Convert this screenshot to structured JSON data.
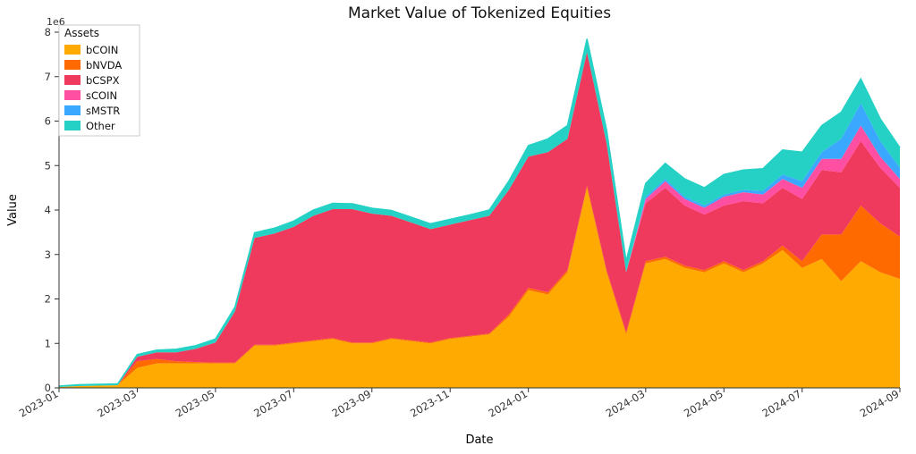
{
  "chart": {
    "type": "stacked-area",
    "title": "Market Value of Tokenized Equities",
    "title_fontsize": 17,
    "xlabel": "Date",
    "ylabel": "Value",
    "label_fontsize": 13,
    "legend_title": "Assets",
    "background_color": "#ffffff",
    "plot_background": "#ffffff",
    "outline_color": "#24d1c4",
    "outline_width": 1.5,
    "x_axis": {
      "type": "time",
      "ticks_months": [
        "2023-01",
        "2023-03",
        "2023-05",
        "2023-07",
        "2023-09",
        "2023-11",
        "2024-01",
        "2024-03",
        "2024-05",
        "2024-07",
        "2024-09"
      ],
      "tick_rotation_deg": 30,
      "range_start": "2023-01",
      "range_end": "2024-09"
    },
    "y_axis": {
      "exponent_label": "1e6",
      "ylim": [
        0,
        8
      ],
      "ytick_step": 1,
      "ticks": [
        0,
        1,
        2,
        3,
        4,
        5,
        6,
        7,
        8
      ]
    },
    "series": [
      {
        "name": "bCOIN",
        "color": "#ffaa00"
      },
      {
        "name": "bNVDA",
        "color": "#ff6a00"
      },
      {
        "name": "bCSPX",
        "color": "#ef3a5d"
      },
      {
        "name": "sCOIN",
        "color": "#ff4fa3"
      },
      {
        "name": "sMSTR",
        "color": "#3aa8ff"
      },
      {
        "name": "Other",
        "color": "#24d1c4"
      }
    ],
    "months": [
      "2023-01",
      "2023-01b",
      "2023-02",
      "2023-02b",
      "2023-03",
      "2023-03b",
      "2023-04",
      "2023-04b",
      "2023-05",
      "2023-05b",
      "2023-06",
      "2023-06b",
      "2023-07",
      "2023-07b",
      "2023-08",
      "2023-08b",
      "2023-09",
      "2023-09b",
      "2023-10",
      "2023-10b",
      "2023-11",
      "2023-11b",
      "2023-12",
      "2023-12b",
      "2024-01",
      "2024-01b",
      "2024-02",
      "2024-02b",
      "2024-02c",
      "2024-02d",
      "2024-03",
      "2024-03b",
      "2024-04",
      "2024-04b",
      "2024-05",
      "2024-05b",
      "2024-06",
      "2024-06b",
      "2024-07",
      "2024-07b",
      "2024-07c",
      "2024-08",
      "2024-08b",
      "2024-08c"
    ],
    "values": {
      "bCOIN": [
        0.02,
        0.04,
        0.05,
        0.06,
        0.45,
        0.55,
        0.55,
        0.55,
        0.55,
        0.55,
        0.95,
        0.95,
        1.0,
        1.05,
        1.1,
        1.0,
        1.0,
        1.1,
        1.05,
        1.0,
        1.1,
        1.15,
        1.2,
        1.6,
        2.2,
        2.1,
        2.6,
        4.5,
        2.6,
        1.2,
        2.8,
        2.9,
        2.7,
        2.6,
        2.8,
        2.6,
        2.8,
        3.1,
        2.7,
        2.9,
        2.4,
        2.85,
        2.6,
        2.45
      ],
      "bNVDA": [
        0.0,
        0.0,
        0.0,
        0.0,
        0.15,
        0.1,
        0.05,
        0.03,
        0.02,
        0.02,
        0.02,
        0.02,
        0.02,
        0.02,
        0.02,
        0.02,
        0.02,
        0.02,
        0.02,
        0.02,
        0.02,
        0.02,
        0.02,
        0.05,
        0.05,
        0.05,
        0.05,
        0.05,
        0.05,
        0.05,
        0.05,
        0.05,
        0.05,
        0.05,
        0.05,
        0.05,
        0.05,
        0.1,
        0.15,
        0.55,
        1.05,
        1.25,
        1.1,
        0.95
      ],
      "bCSPX": [
        0.0,
        0.0,
        0.0,
        0.0,
        0.1,
        0.15,
        0.2,
        0.3,
        0.45,
        1.15,
        2.4,
        2.5,
        2.6,
        2.8,
        2.9,
        3.0,
        2.9,
        2.75,
        2.65,
        2.55,
        2.55,
        2.6,
        2.65,
        2.8,
        2.95,
        3.15,
        2.95,
        3.0,
        2.85,
        1.35,
        1.3,
        1.55,
        1.35,
        1.25,
        1.25,
        1.55,
        1.3,
        1.3,
        1.4,
        1.45,
        1.4,
        1.45,
        1.25,
        1.1
      ],
      "sCOIN": [
        0.0,
        0.0,
        0.0,
        0.0,
        0.0,
        0.0,
        0.0,
        0.0,
        0.0,
        0.0,
        0.0,
        0.0,
        0.0,
        0.0,
        0.0,
        0.0,
        0.0,
        0.0,
        0.0,
        0.0,
        0.0,
        0.0,
        0.0,
        0.0,
        0.0,
        0.0,
        0.0,
        0.0,
        0.0,
        0.0,
        0.1,
        0.15,
        0.15,
        0.15,
        0.2,
        0.2,
        0.2,
        0.2,
        0.25,
        0.25,
        0.3,
        0.35,
        0.25,
        0.2
      ],
      "sMSTR": [
        0.0,
        0.0,
        0.0,
        0.0,
        0.0,
        0.0,
        0.0,
        0.0,
        0.0,
        0.0,
        0.0,
        0.0,
        0.0,
        0.0,
        0.0,
        0.0,
        0.0,
        0.0,
        0.0,
        0.0,
        0.0,
        0.0,
        0.0,
        0.0,
        0.0,
        0.0,
        0.0,
        0.0,
        0.0,
        0.0,
        0.05,
        0.05,
        0.05,
        0.05,
        0.05,
        0.05,
        0.08,
        0.1,
        0.15,
        0.15,
        0.45,
        0.5,
        0.35,
        0.25
      ],
      "Other": [
        0.02,
        0.03,
        0.03,
        0.03,
        0.05,
        0.05,
        0.07,
        0.07,
        0.08,
        0.1,
        0.12,
        0.12,
        0.13,
        0.13,
        0.13,
        0.12,
        0.12,
        0.12,
        0.12,
        0.12,
        0.12,
        0.12,
        0.13,
        0.2,
        0.25,
        0.3,
        0.3,
        0.3,
        0.3,
        0.25,
        0.3,
        0.35,
        0.4,
        0.4,
        0.45,
        0.45,
        0.5,
        0.55,
        0.65,
        0.6,
        0.6,
        0.55,
        0.5,
        0.45
      ]
    }
  }
}
